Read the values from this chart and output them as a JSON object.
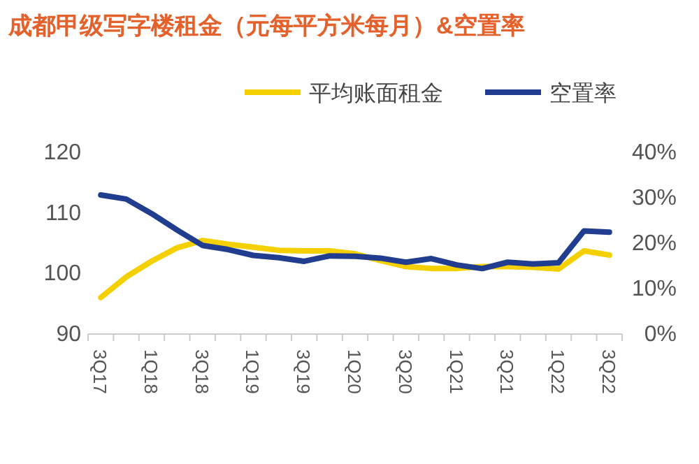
{
  "chart_data": {
    "type": "line",
    "title": "成都甲级写字楼租金（元每平方米每月）&空置率",
    "categories": [
      "3Q17",
      null,
      "1Q18",
      null,
      "3Q18",
      null,
      "1Q19",
      null,
      "3Q19",
      null,
      "1Q20",
      null,
      "3Q20",
      null,
      "1Q21",
      null,
      "3Q21",
      null,
      "1Q22",
      null,
      "3Q22"
    ],
    "series": [
      {
        "name": "平均账面租金",
        "color": "#f5d000",
        "values": [
          95.8,
          99.2,
          101.8,
          104,
          105.2,
          104.6,
          104.1,
          103.6,
          103.5,
          103.5,
          103,
          101.9,
          100.9,
          100.6,
          100.6,
          100.9,
          100.9,
          100.8,
          100.5,
          103.5,
          102.8
        ]
      },
      {
        "name": "空置率",
        "color": "#213d8f",
        "axis": "y2",
        "values": [
          30.3,
          29.4,
          26.2,
          22.6,
          19.2,
          18.3,
          17.0,
          16.5,
          15.7,
          16.9,
          16.8,
          16.4,
          15.5,
          16.3,
          14.9,
          14.1,
          15.5,
          15.1,
          15.4,
          22.4,
          22.1
        ]
      }
    ],
    "ylim": [
      90,
      120
    ],
    "yticks": [
      90,
      100,
      110,
      120
    ],
    "y2lim": [
      0,
      40
    ],
    "y2ticks": [
      {
        "value": 0,
        "label": "0%"
      },
      {
        "value": 10,
        "label": "10%"
      },
      {
        "value": 20,
        "label": "20%"
      },
      {
        "value": 30,
        "label": "30%"
      },
      {
        "value": 40,
        "label": "40%"
      }
    ],
    "legend": "top",
    "grid": false,
    "marker": "none",
    "line_style": "solid"
  }
}
